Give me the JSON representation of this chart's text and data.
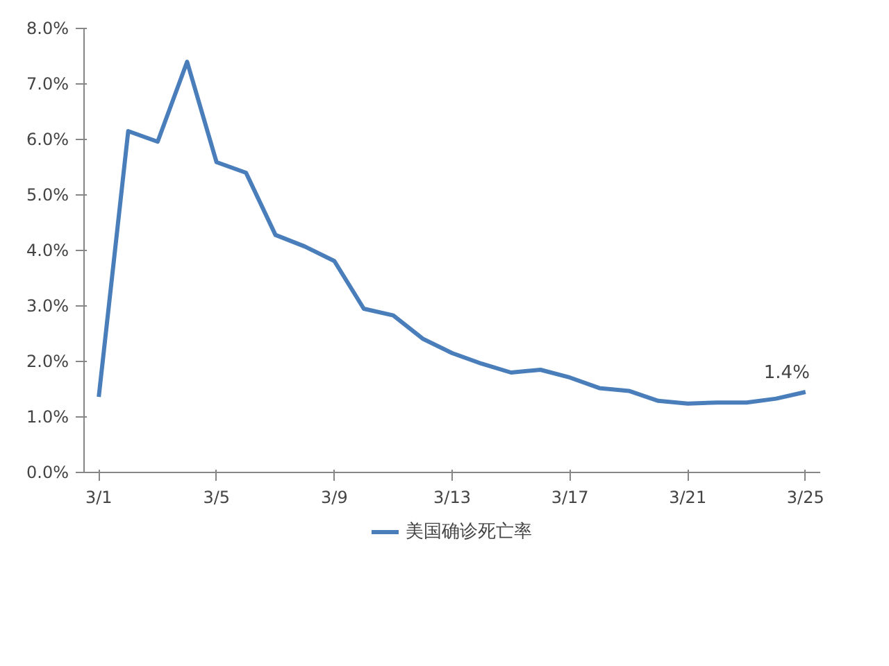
{
  "chart_data": {
    "type": "line",
    "categories": [
      "3/1",
      null,
      null,
      null,
      "3/5",
      null,
      null,
      null,
      "3/9",
      null,
      null,
      null,
      "3/13",
      null,
      null,
      null,
      "3/17",
      null,
      null,
      null,
      "3/21",
      null,
      null,
      null,
      "3/25"
    ],
    "series": [
      {
        "name": "美国确诊死亡率",
        "color": "#4a7ebb",
        "values": [
          1.36,
          6.15,
          5.96,
          7.4,
          5.59,
          5.4,
          4.28,
          4.07,
          3.81,
          2.95,
          2.83,
          2.41,
          2.15,
          1.96,
          1.8,
          1.85,
          1.71,
          1.52,
          1.47,
          1.29,
          1.24,
          1.26,
          1.26,
          1.33,
          1.45
        ],
        "value_labels": [
          null,
          null,
          null,
          null,
          null,
          null,
          null,
          null,
          null,
          null,
          null,
          null,
          null,
          null,
          null,
          null,
          null,
          null,
          null,
          null,
          null,
          null,
          null,
          null,
          "1.4%"
        ]
      }
    ],
    "ylim": [
      0,
      8
    ],
    "yticks": [
      {
        "value": 0,
        "label": "0.0%"
      },
      {
        "value": 1,
        "label": "1.0%"
      },
      {
        "value": 2,
        "label": "2.0%"
      },
      {
        "value": 3,
        "label": "3.0%"
      },
      {
        "value": 4,
        "label": "4.0%"
      },
      {
        "value": 5,
        "label": "5.0%"
      },
      {
        "value": 6,
        "label": "6.0%"
      },
      {
        "value": 7,
        "label": "7.0%"
      },
      {
        "value": 8,
        "label": "8.0%"
      }
    ],
    "grid": false,
    "legend": "bottom",
    "marker": "none",
    "line_style": "solid"
  }
}
